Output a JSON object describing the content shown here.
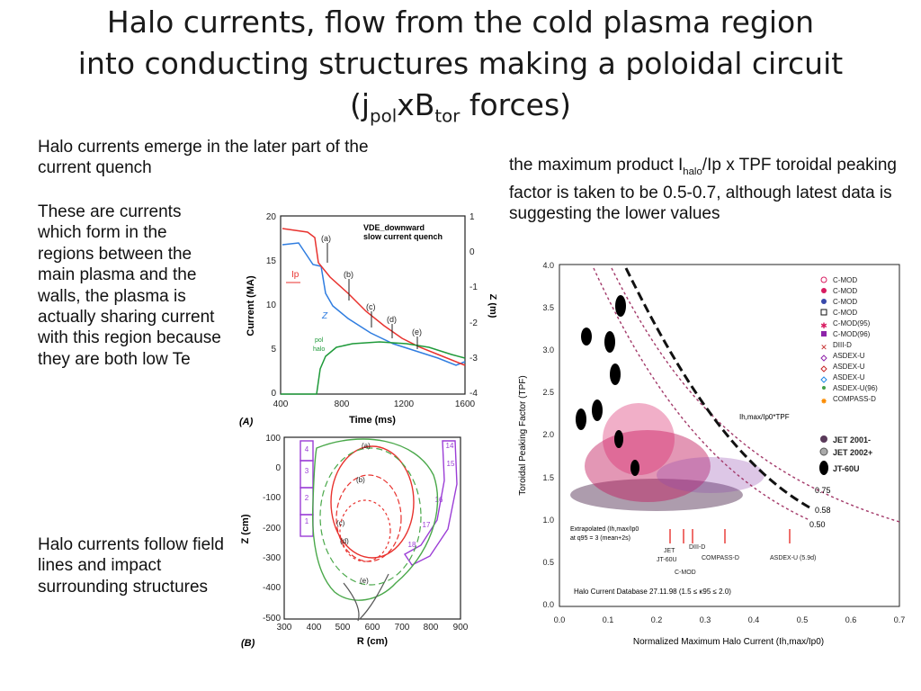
{
  "slide": {
    "title_line1": "Halo currents, flow from the cold plasma region",
    "title_line2": "into conducting structures making a poloidal circuit",
    "title_open": "(j",
    "title_sub1": "pol",
    "title_mid": "xB",
    "title_sub2": "tor",
    "title_close": " forces)",
    "intro_text": "Halo currents emerge in the later part of the current quench",
    "left_text": "These are currents which form in the regions between the main plasma and the walls, the plasma is actually sharing current with this region because they are both low Te",
    "left_text2": "Halo currents follow field lines and impact surrounding structures",
    "right_text_a": "the maximum product I",
    "right_text_sub": "halo",
    "right_text_b": "/Ip x TPF toroidal peaking factor is taken to be 0.5-0.7, although latest data is suggesting the lower values"
  },
  "figA": {
    "panel_label": "(A)",
    "note1": "VDE_downward",
    "note2": "slow current quench",
    "ylabel": "Current (MA)",
    "y2label": "Z (m)",
    "xlabel": "Time (ms)",
    "xticks": [
      "400",
      "800",
      "1200",
      "1600"
    ],
    "yticks": [
      "20",
      "15",
      "10",
      "5",
      "0"
    ],
    "y2ticks": [
      "1",
      "0",
      "-1",
      "-2",
      "-3",
      "-4"
    ],
    "markers": [
      "(a)",
      "(b)",
      "(c)",
      "(d)",
      "(e)"
    ],
    "lbl_ip": "Ip",
    "lbl_z": "Z",
    "lbl_pol": "pol",
    "lbl_halo": "halo",
    "colors": {
      "ip": "#e8322e",
      "z": "#2f7de0",
      "halo": "#1f9a3a"
    }
  },
  "figB": {
    "panel_label": "(B)",
    "ylabel": "Z (cm)",
    "xlabel": "R (cm)",
    "xticks": [
      "300",
      "400",
      "500",
      "600",
      "700",
      "800",
      "900"
    ],
    "yticks": [
      "100",
      "0",
      "-100",
      "-200",
      "-300",
      "-400",
      "-500"
    ],
    "markers": [
      "(a)",
      "(b)",
      "(c)",
      "(d)",
      "(e)"
    ],
    "modules_left": [
      "4",
      "3",
      "2",
      "1"
    ],
    "modules_right": [
      "14",
      "15",
      "16",
      "17",
      "18"
    ]
  },
  "figC": {
    "ylabel": "Toroidal Peaking Factor (TPF)",
    "xlabel": "Normalized Maximum Halo Current (Ih,max/Ip0)",
    "xticks": [
      "0.0",
      "0.1",
      "0.2",
      "0.3",
      "0.4",
      "0.5",
      "0.6",
      "0.7"
    ],
    "yticks": [
      "4.0",
      "3.5",
      "3.0",
      "2.5",
      "2.0",
      "1.5",
      "1.0",
      "0.5",
      "0.0"
    ],
    "legend": [
      "C-MOD",
      "C-MOD",
      "C-MOD",
      "C-MOD",
      "C-MOD(95)",
      "C-MOD(96)",
      "DIII-D",
      "ASDEX-U",
      "ASDEX-U",
      "ASDEX-U",
      "ASDEX-U(96)",
      "COMPASS-D"
    ],
    "legend2": [
      "JET 2001-",
      "JET 2002+",
      "JT-60U"
    ],
    "curve_label": "Ih,max/Ip0*TPF",
    "curve_values": [
      "0.75",
      "0.58",
      "0.50"
    ],
    "extrap_line1": "Extrapolated (Ih,max/Ip0",
    "extrap_line2": "at q95 = 3 (mean+2s)",
    "machines": [
      "JET",
      "JT-60U",
      "DIII-D",
      "C-MOD",
      "COMPASS-D",
      "ASDEX-U (5.9d)"
    ],
    "database_note": "Halo Current Database 27.11.98 (1.5 ≤ κ95 ≤ 2.0)"
  }
}
